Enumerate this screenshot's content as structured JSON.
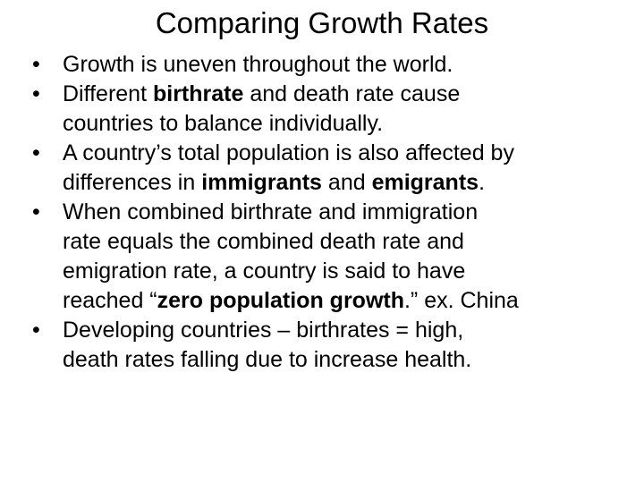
{
  "slide": {
    "title": "Comparing Growth Rates",
    "bullet_symbol": "•",
    "bullets": [
      {
        "lines": [
          [
            {
              "text": "Growth is uneven throughout the world."
            }
          ]
        ]
      },
      {
        "lines": [
          [
            {
              "text": "Different "
            },
            {
              "text": "birthrate",
              "bold": true
            },
            {
              "text": " and death rate cause"
            }
          ],
          [
            {
              "text": "countries to balance individually."
            }
          ]
        ]
      },
      {
        "lines": [
          [
            {
              "text": "A country’s total population is also affected by"
            }
          ],
          [
            {
              "text": "differences in "
            },
            {
              "text": "immigrants",
              "bold": true
            },
            {
              "text": " and "
            },
            {
              "text": "emigrants",
              "bold": true
            },
            {
              "text": "."
            }
          ]
        ]
      },
      {
        "lines": [
          [
            {
              "text": "When combined birthrate and immigration"
            }
          ],
          [
            {
              "text": "rate equals the combined death rate and"
            }
          ],
          [
            {
              "text": "emigration rate, a country is said to have"
            }
          ],
          [
            {
              "text": "reached “"
            },
            {
              "text": "zero population growth",
              "bold": true
            },
            {
              "text": ".”  ex. China"
            }
          ]
        ]
      },
      {
        "lines": [
          [
            {
              "text": "Developing countries – birthrates = high,"
            }
          ],
          [
            {
              "text": "death rates falling due to increase health."
            }
          ]
        ]
      }
    ]
  }
}
